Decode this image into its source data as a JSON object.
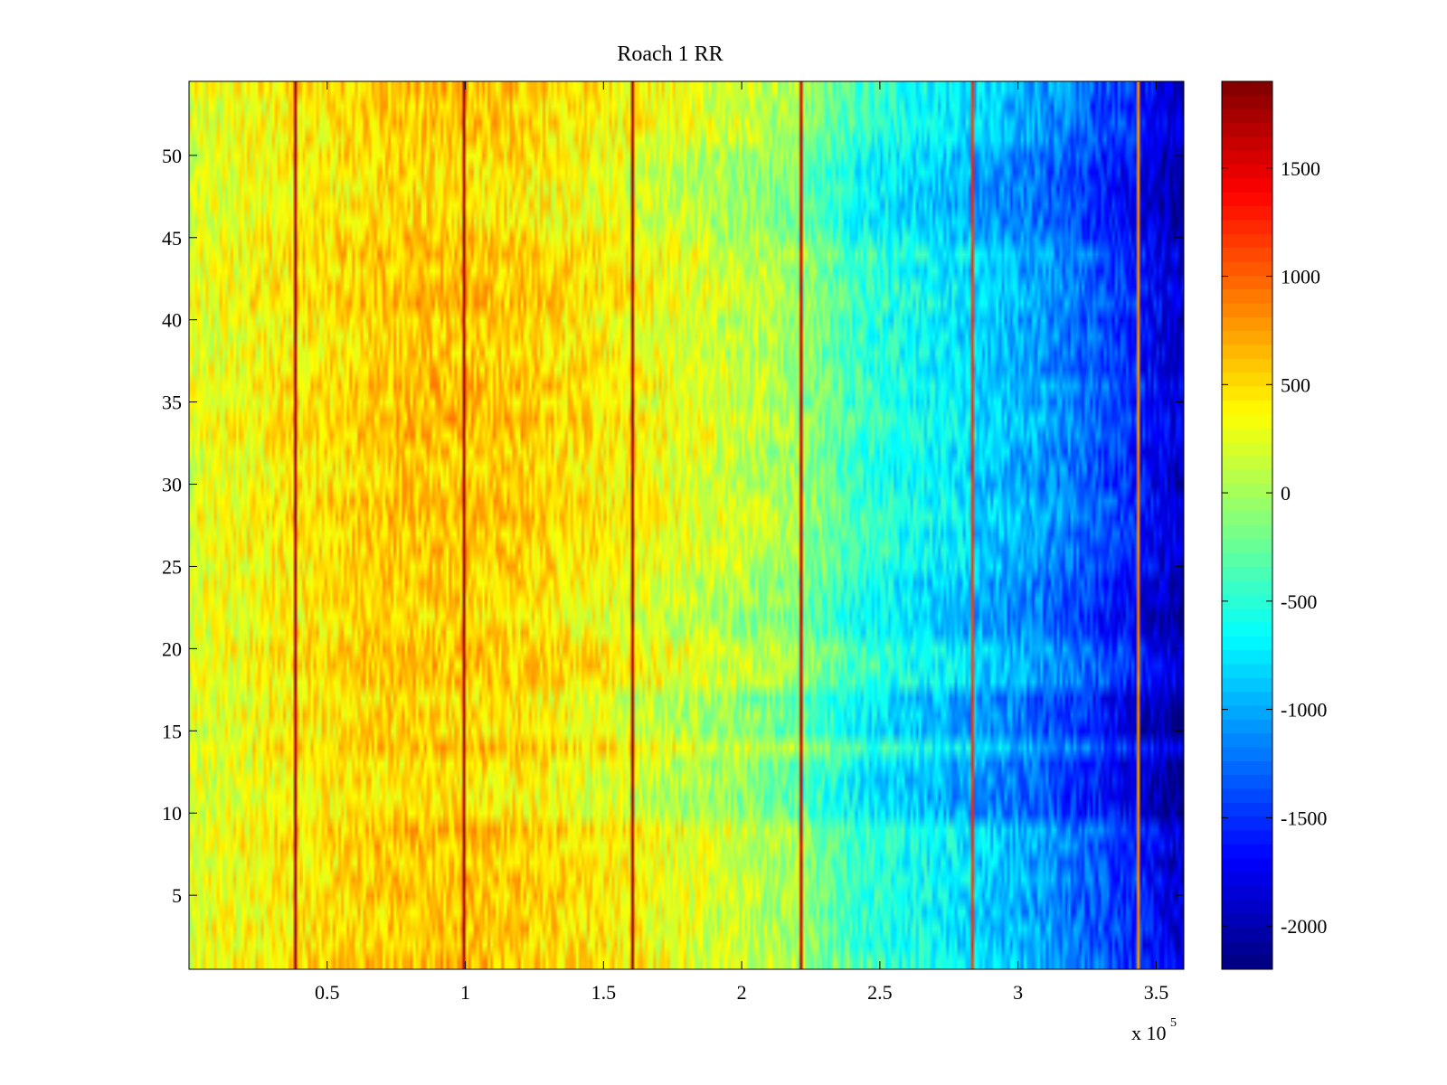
{
  "chart_data": {
    "type": "heatmap",
    "title": "Roach 1 RR",
    "xlabel": "",
    "ylabel": "",
    "x_exponent_label": "x 10",
    "x_exponent": "5",
    "xlim": [
      0,
      3.6
    ],
    "ylim": [
      0.5,
      54.5
    ],
    "x_ticks": [
      {
        "value": 0.5,
        "label": "0.5"
      },
      {
        "value": 1,
        "label": "1"
      },
      {
        "value": 1.5,
        "label": "1.5"
      },
      {
        "value": 2,
        "label": "2"
      },
      {
        "value": 2.5,
        "label": "2.5"
      },
      {
        "value": 3,
        "label": "3"
      },
      {
        "value": 3.5,
        "label": "3.5"
      }
    ],
    "y_ticks": [
      {
        "value": 5,
        "label": "5"
      },
      {
        "value": 10,
        "label": "10"
      },
      {
        "value": 15,
        "label": "15"
      },
      {
        "value": 20,
        "label": "20"
      },
      {
        "value": 25,
        "label": "25"
      },
      {
        "value": 30,
        "label": "30"
      },
      {
        "value": 35,
        "label": "35"
      },
      {
        "value": 40,
        "label": "40"
      },
      {
        "value": 45,
        "label": "45"
      },
      {
        "value": 50,
        "label": "50"
      }
    ],
    "rows": 54,
    "columns": 360,
    "colormap": "jet",
    "clim": [
      -2200,
      1900
    ],
    "colorbar_ticks": [
      {
        "value": 1500,
        "label": "1500"
      },
      {
        "value": 1000,
        "label": "1000"
      },
      {
        "value": 500,
        "label": "500"
      },
      {
        "value": 0,
        "label": "0"
      },
      {
        "value": -500,
        "label": "-500"
      },
      {
        "value": -1000,
        "label": "-1000"
      },
      {
        "value": -1500,
        "label": "-1500"
      },
      {
        "value": -2000,
        "label": "-2000"
      }
    ],
    "trend": {
      "x": [
        0,
        0.4,
        0.8,
        1.2,
        1.6,
        2.0,
        2.2,
        2.4,
        2.8,
        3.1,
        3.4,
        3.6
      ],
      "value": [
        250,
        450,
        600,
        560,
        380,
        150,
        0,
        -400,
        -750,
        -1050,
        -1500,
        -1900
      ],
      "noise": 280
    },
    "row_offsets": [
      {
        "rows": [
          10,
          11,
          12,
          13
        ],
        "offset": -250
      },
      {
        "rows": [
          15,
          16,
          17
        ],
        "offset": -300
      },
      {
        "rows": [
          21,
          22,
          23,
          24
        ],
        "offset": -200
      },
      {
        "rows": [
          45,
          46,
          47,
          48,
          49,
          50
        ],
        "offset": -180
      }
    ],
    "stripes": [
      {
        "x": 0.383,
        "value": 1850
      },
      {
        "x": 0.995,
        "value": 1850
      },
      {
        "x": 1.605,
        "value": 1850
      },
      {
        "x": 2.215,
        "value": 1700
      },
      {
        "x": 2.83,
        "value": 1300
      },
      {
        "x": 3.435,
        "value": 900
      }
    ]
  }
}
